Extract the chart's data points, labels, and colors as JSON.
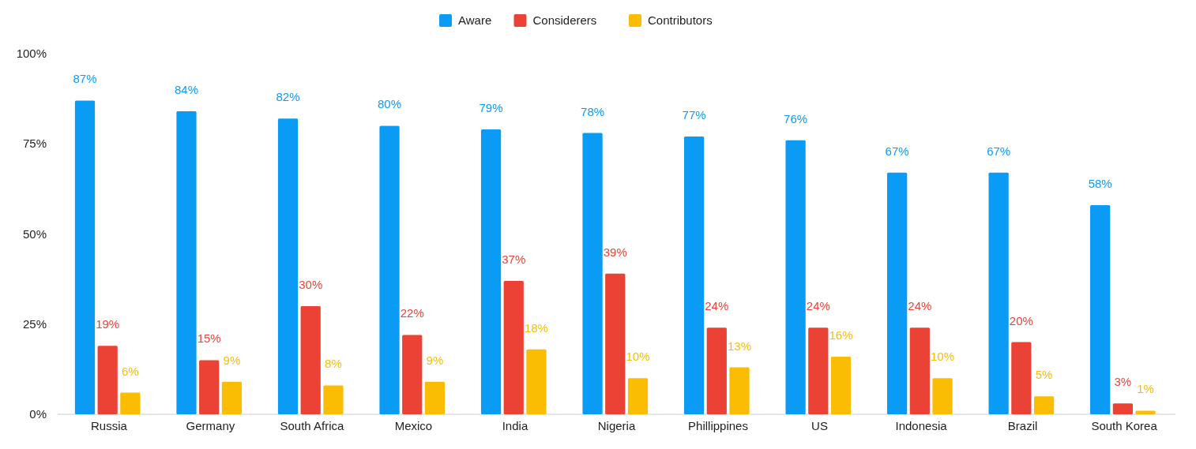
{
  "chart_data": {
    "type": "bar",
    "categories": [
      "Russia",
      "Germany",
      "South Africa",
      "Mexico",
      "India",
      "Nigeria",
      "Phillippines",
      "US",
      "Indonesia",
      "Brazil",
      "South Korea"
    ],
    "series": [
      {
        "name": "Aware",
        "color": "#0a9cf5",
        "values": [
          87,
          84,
          82,
          80,
          79,
          78,
          77,
          76,
          67,
          67,
          58
        ],
        "value_labels": [
          "87%",
          "84%",
          "82%",
          "80%",
          "79%",
          "78%",
          "77%",
          "76%",
          "67%",
          "67%",
          "58%"
        ]
      },
      {
        "name": "Considerers",
        "color": "#ea4335",
        "values": [
          19,
          15,
          30,
          22,
          37,
          39,
          24,
          24,
          24,
          20,
          3
        ],
        "value_labels": [
          "19%",
          "15%",
          "30%",
          "22%",
          "37%",
          "39%",
          "24%",
          "24%",
          "24%",
          "20%",
          "3%"
        ]
      },
      {
        "name": "Contributors",
        "color": "#fbbc04",
        "values": [
          6,
          9,
          8,
          9,
          18,
          10,
          13,
          16,
          10,
          5,
          1
        ],
        "value_labels": [
          "6%",
          "9%",
          "8%",
          "9%",
          "18%",
          "10%",
          "13%",
          "16%",
          "10%",
          "5%",
          "1%"
        ]
      }
    ],
    "ylim": [
      0,
      100
    ],
    "yticks": [
      {
        "value": 0,
        "label": "0%"
      },
      {
        "value": 25,
        "label": "25%"
      },
      {
        "value": 50,
        "label": "50%"
      },
      {
        "value": 75,
        "label": "75%"
      },
      {
        "value": 100,
        "label": "100%"
      }
    ],
    "legend": "top",
    "grid": false
  }
}
